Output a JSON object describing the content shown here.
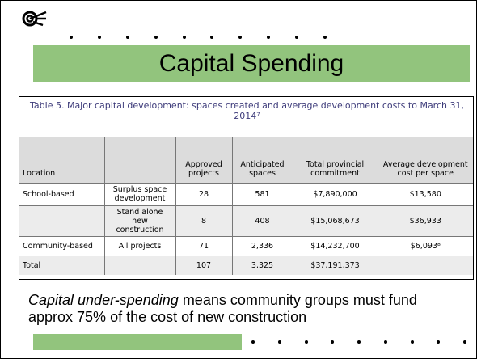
{
  "header": {
    "title": "Capital Spending"
  },
  "table": {
    "caption": "Table 5. Major capital development: spaces created and average development costs to March 31, 2014⁷",
    "columns": [
      "Location",
      null,
      "Approved projects",
      "Anticipated spaces",
      "Total provincial commitment",
      "Average development cost per space"
    ],
    "rows": [
      [
        "School-based",
        "Surplus space development",
        "28",
        "581",
        "$7,890,000",
        "$13,580"
      ],
      [
        null,
        "Stand alone new construction",
        "8",
        "408",
        "$15,068,673",
        "$36,933"
      ],
      [
        "Community-based",
        "All projects",
        "71",
        "2,336",
        "$14,232,700",
        "$6,093⁸"
      ],
      [
        "Total",
        null,
        "107",
        "3,325",
        "$37,191,373",
        null
      ]
    ]
  },
  "note": {
    "emphasis": "Capital under-spending",
    "text": " means community groups must fund approx 75% of the cost of new construction"
  }
}
